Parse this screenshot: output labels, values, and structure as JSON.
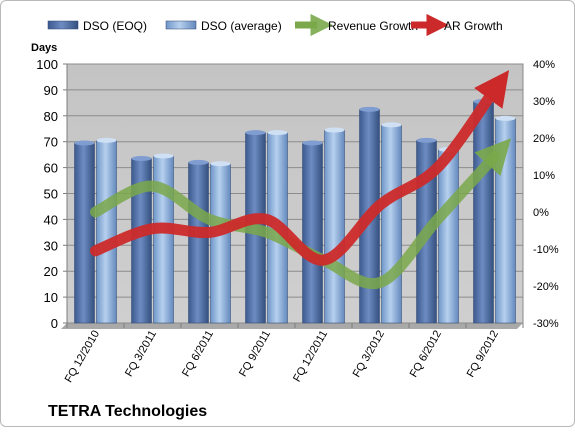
{
  "chart_data": {
    "type": "bar",
    "title": "TETRA Technologies",
    "ylabel": "Days",
    "ylim": [
      0,
      100
    ],
    "y_ticks": [
      "0",
      "10",
      "20",
      "30",
      "40",
      "50",
      "60",
      "70",
      "80",
      "90",
      "100"
    ],
    "y2lim": [
      -30,
      40
    ],
    "y2_ticks": [
      "-30%",
      "-20%",
      "-10%",
      "0%",
      "10%",
      "20%",
      "30%",
      "40%"
    ],
    "categories": [
      "FQ 12/2010",
      "FQ 3/2011",
      "FQ 6/2011",
      "FQ 9/2011",
      "FQ 12/2011",
      "FQ 3/2012",
      "FQ 6/2012",
      "FQ 9/2012"
    ],
    "series": [
      {
        "name": "DSO (EOQ)",
        "kind": "bar",
        "axis": "left",
        "color": "#4f6fa8",
        "values": [
          69.5,
          63.5,
          62,
          73.5,
          69.5,
          82.5,
          70.5,
          85.5
        ]
      },
      {
        "name": "DSO (average)",
        "kind": "bar",
        "axis": "left",
        "color": "#8fb3de",
        "values": [
          70.5,
          64.5,
          61.5,
          73.5,
          74.5,
          76.5,
          67,
          79
        ]
      },
      {
        "name": "Revenue Growth",
        "kind": "line",
        "axis": "right",
        "color": "#7aa84a",
        "values": [
          0,
          7,
          -2,
          -5.5,
          -13,
          -19,
          -2,
          15
        ]
      },
      {
        "name": "AR Growth",
        "kind": "line",
        "axis": "right",
        "color": "#cc2a2a",
        "values": [
          -10.5,
          -4.5,
          -5.5,
          -2,
          -13,
          2,
          12,
          33
        ]
      }
    ],
    "legend_position": "top",
    "grid": true
  }
}
